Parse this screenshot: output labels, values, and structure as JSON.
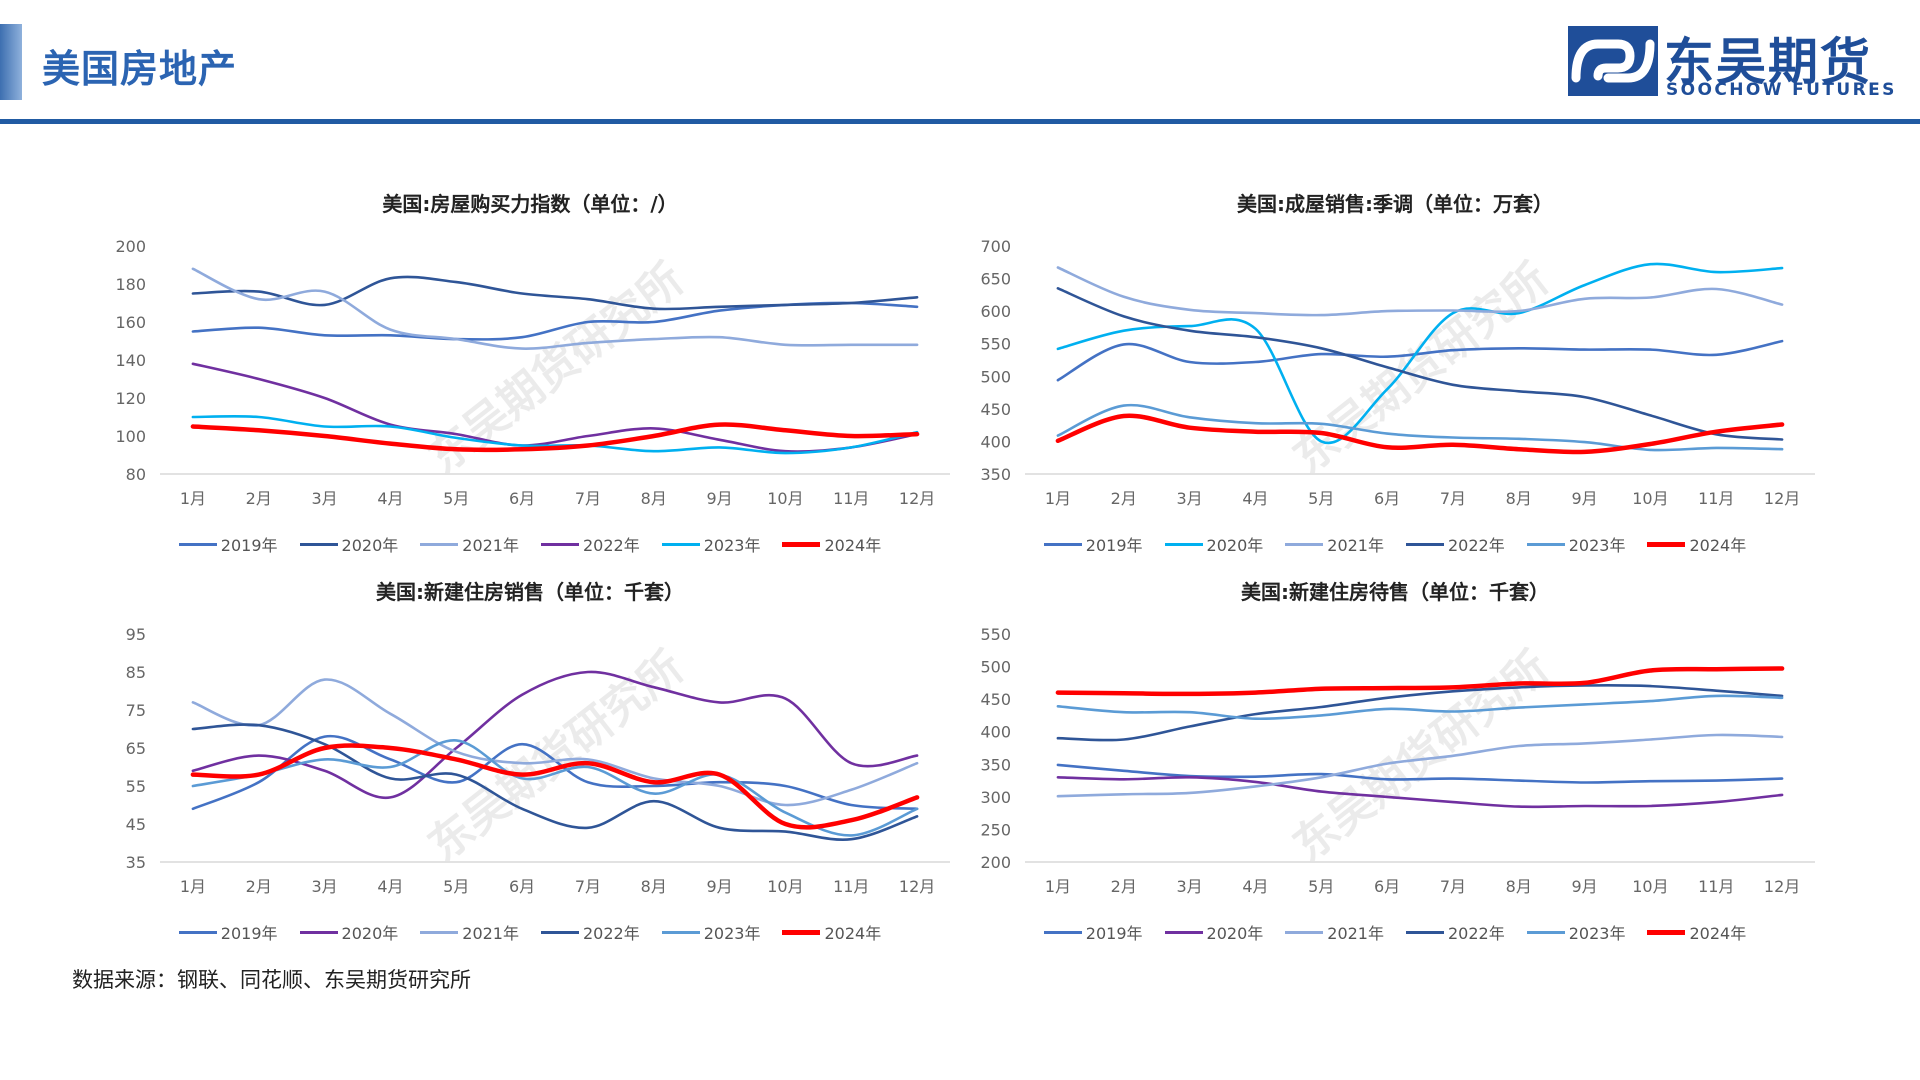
{
  "header": {
    "title": "美国房地产",
    "brand_cn": "东吴期货",
    "brand_en": "SOOCHOW FUTURES"
  },
  "watermark": "东吴期货研究所",
  "source_note": "数据来源：钢联、同花顺、东吴期货研究所",
  "colors": {
    "accent": "#215ba3",
    "s2019": "#4472c4",
    "s2020_set1": "#2f5597",
    "s2021": "#8faadc",
    "s2022_set1": "#7030a0",
    "s2023_set1": "#00b0f0",
    "s2024": "#ff0000"
  },
  "chart_data": [
    {
      "id": "affordability",
      "type": "line",
      "title": "美国:房屋购买力指数（单位：/）",
      "categories": [
        "1月",
        "2月",
        "3月",
        "4月",
        "5月",
        "6月",
        "7月",
        "8月",
        "9月",
        "10月",
        "11月",
        "12月"
      ],
      "ylim": [
        80,
        200
      ],
      "yticks": [
        80,
        100,
        120,
        140,
        160,
        180,
        200
      ],
      "series": [
        {
          "name": "2019年",
          "color": "#4472c4",
          "values": [
            155,
            157,
            153,
            153,
            151,
            152,
            160,
            160,
            166,
            169,
            170,
            168
          ]
        },
        {
          "name": "2020年",
          "color": "#2f5597",
          "values": [
            175,
            176,
            169,
            183,
            181,
            175,
            172,
            167,
            168,
            169,
            170,
            173
          ]
        },
        {
          "name": "2021年",
          "color": "#8faadc",
          "values": [
            188,
            172,
            176,
            156,
            151,
            146,
            149,
            151,
            152,
            148,
            148,
            148
          ]
        },
        {
          "name": "2022年",
          "color": "#7030a0",
          "values": [
            138,
            130,
            120,
            106,
            101,
            95,
            100,
            104,
            98,
            92,
            94,
            101
          ]
        },
        {
          "name": "2023年",
          "color": "#00b0f0",
          "values": [
            110,
            110,
            105,
            105,
            99,
            95,
            95,
            92,
            94,
            91,
            94,
            102
          ]
        },
        {
          "name": "2024年",
          "color": "#ff0000",
          "values": [
            105,
            103,
            100,
            96,
            93,
            93,
            95,
            100,
            106,
            103,
            100,
            101
          ]
        }
      ]
    },
    {
      "id": "existing-home-sales",
      "type": "line",
      "title": "美国:成屋销售:季调（单位：万套）",
      "categories": [
        "1月",
        "2月",
        "3月",
        "4月",
        "5月",
        "6月",
        "7月",
        "8月",
        "9月",
        "10月",
        "11月",
        "12月"
      ],
      "ylim": [
        350,
        700
      ],
      "yticks": [
        350,
        400,
        450,
        500,
        550,
        600,
        650,
        700
      ],
      "series": [
        {
          "name": "2019年",
          "color": "#4472c4",
          "values": [
            494,
            549,
            522,
            522,
            534,
            530,
            540,
            543,
            541,
            541,
            533,
            554
          ]
        },
        {
          "name": "2020年",
          "color": "#00b0f0",
          "values": [
            542,
            570,
            577,
            573,
            400,
            480,
            597,
            597,
            640,
            672,
            660,
            666
          ]
        },
        {
          "name": "2021年",
          "color": "#8faadc",
          "values": [
            667,
            622,
            602,
            597,
            594,
            600,
            601,
            600,
            619,
            621,
            634,
            610
          ]
        },
        {
          "name": "2022年",
          "color": "#2f5597",
          "values": [
            635,
            592,
            570,
            560,
            543,
            514,
            487,
            477,
            468,
            440,
            411,
            403
          ]
        },
        {
          "name": "2023年",
          "color": "#5b9bd5",
          "values": [
            409,
            455,
            437,
            428,
            427,
            412,
            406,
            404,
            399,
            387,
            390,
            388
          ]
        },
        {
          "name": "2024年",
          "color": "#ff0000",
          "values": [
            401,
            439,
            421,
            415,
            413,
            391,
            395,
            388,
            384,
            396,
            415,
            426
          ]
        }
      ]
    },
    {
      "id": "new-home-sales",
      "type": "line",
      "title": "美国:新建住房销售（单位：千套）",
      "categories": [
        "1月",
        "2月",
        "3月",
        "4月",
        "5月",
        "6月",
        "7月",
        "8月",
        "9月",
        "10月",
        "11月",
        "12月"
      ],
      "ylim": [
        35,
        95
      ],
      "yticks": [
        35,
        45,
        55,
        65,
        75,
        85,
        95
      ],
      "series": [
        {
          "name": "2019年",
          "color": "#4472c4",
          "values": [
            49,
            56,
            68,
            62,
            56,
            66,
            56,
            55,
            56,
            55,
            50,
            49
          ]
        },
        {
          "name": "2020年",
          "color": "#7030a0",
          "values": [
            59,
            63,
            59,
            52,
            65,
            79,
            85,
            81,
            77,
            78,
            61,
            63
          ]
        },
        {
          "name": "2021年",
          "color": "#8faadc",
          "values": [
            77,
            71,
            83,
            74,
            64,
            61,
            62,
            57,
            55,
            50,
            54,
            61
          ]
        },
        {
          "name": "2022年",
          "color": "#2f5597",
          "values": [
            70,
            71,
            66,
            57,
            58,
            49,
            44,
            51,
            44,
            43,
            41,
            47
          ]
        },
        {
          "name": "2023年",
          "color": "#5b9bd5",
          "values": [
            55,
            58,
            62,
            60,
            67,
            57,
            60,
            53,
            58,
            48,
            42,
            49
          ]
        },
        {
          "name": "2024年",
          "color": "#ff0000",
          "values": [
            58,
            58,
            65,
            65,
            62,
            58,
            61,
            56,
            58,
            45,
            46,
            52
          ]
        }
      ]
    },
    {
      "id": "new-homes-for-sale",
      "type": "line",
      "title": "美国:新建住房待售（单位：千套）",
      "categories": [
        "1月",
        "2月",
        "3月",
        "4月",
        "5月",
        "6月",
        "7月",
        "8月",
        "9月",
        "10月",
        "11月",
        "12月"
      ],
      "ylim": [
        200,
        550
      ],
      "yticks": [
        200,
        250,
        300,
        350,
        400,
        450,
        500,
        550
      ],
      "series": [
        {
          "name": "2019年",
          "color": "#4472c4",
          "values": [
            349,
            340,
            332,
            331,
            335,
            327,
            328,
            325,
            322,
            324,
            325,
            328
          ]
        },
        {
          "name": "2020年",
          "color": "#7030a0",
          "values": [
            330,
            327,
            330,
            323,
            308,
            300,
            292,
            285,
            286,
            286,
            292,
            303
          ]
        },
        {
          "name": "2021年",
          "color": "#8faadc",
          "values": [
            301,
            304,
            306,
            316,
            330,
            351,
            363,
            378,
            382,
            388,
            395,
            392
          ]
        },
        {
          "name": "2022年",
          "color": "#2f5597",
          "values": [
            390,
            388,
            408,
            427,
            438,
            452,
            462,
            468,
            471,
            470,
            463,
            455
          ]
        },
        {
          "name": "2023年",
          "color": "#5b9bd5",
          "values": [
            439,
            430,
            430,
            420,
            425,
            435,
            431,
            437,
            442,
            447,
            455,
            452
          ]
        },
        {
          "name": "2024年",
          "color": "#ff0000",
          "values": [
            460,
            459,
            458,
            460,
            466,
            467,
            468,
            474,
            475,
            494,
            496,
            497
          ]
        }
      ]
    }
  ]
}
